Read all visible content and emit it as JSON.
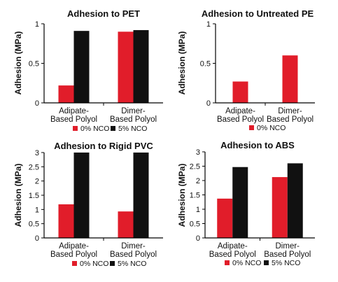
{
  "chart_data": [
    {
      "type": "bar",
      "title": "Adhesion to PET",
      "ylabel": "Adhesion (MPa)",
      "xlabel": "",
      "categories": [
        [
          "Adipate-",
          "Based Polyol"
        ],
        [
          "Dimer-",
          "Based Polyol"
        ]
      ],
      "ylim": [
        0,
        1
      ],
      "yticks": [
        0,
        0.5,
        1
      ],
      "ytick_labels": [
        "0",
        "0.5",
        "1"
      ],
      "series": [
        {
          "name": "0% NCO",
          "color": "#e11d2a",
          "values": [
            0.22,
            0.9
          ]
        },
        {
          "name": "5% NCO",
          "color": "#111111",
          "values": [
            0.91,
            0.92
          ]
        }
      ],
      "legend": "bottom",
      "grid": false
    },
    {
      "type": "bar",
      "title": "Adhesion to Untreated PE",
      "ylabel": "Adhesion (MPa)",
      "xlabel": "",
      "categories": [
        [
          "Adipate-",
          "Based Polyol"
        ],
        [
          "Dimer-",
          "Based Polyol"
        ]
      ],
      "ylim": [
        0,
        1
      ],
      "yticks": [
        0,
        0.5,
        1
      ],
      "ytick_labels": [
        "0",
        "0.5",
        "1"
      ],
      "series": [
        {
          "name": "0% NCO",
          "color": "#e11d2a",
          "values": [
            0.27,
            0.6
          ]
        }
      ],
      "legend": "bottom",
      "grid": false
    },
    {
      "type": "bar",
      "title": "Adhesion to Rigid PVC",
      "ylabel": "Adhesion (MPa)",
      "xlabel": "",
      "categories": [
        [
          "Adipate-",
          "Based Polyol"
        ],
        [
          "Dimer-",
          "Based Polyol"
        ]
      ],
      "ylim": [
        0,
        3
      ],
      "yticks": [
        0,
        0.5,
        1,
        1.5,
        2,
        2.5,
        3
      ],
      "ytick_labels": [
        "0",
        "0.5",
        "1",
        "1.5",
        "2",
        "2.5",
        "3"
      ],
      "series": [
        {
          "name": "0% NCO",
          "color": "#e11d2a",
          "values": [
            1.18,
            0.93
          ]
        },
        {
          "name": "5% NCO",
          "color": "#111111",
          "values": [
            3.0,
            3.0
          ]
        }
      ],
      "legend": "bottom",
      "grid": false
    },
    {
      "type": "bar",
      "title": "Adhesion to ABS",
      "ylabel": "Adhesion (MPa)",
      "xlabel": "",
      "categories": [
        [
          "Adipate-",
          "Based Polyol"
        ],
        [
          "Dimer-",
          "Based Polyol"
        ]
      ],
      "ylim": [
        0,
        3
      ],
      "yticks": [
        0,
        0.5,
        1,
        1.5,
        2,
        2.5,
        3
      ],
      "ytick_labels": [
        "0",
        "0.5",
        "1",
        "1.5",
        "2",
        "2.5",
        "3"
      ],
      "series": [
        {
          "name": "0% NCO",
          "color": "#e11d2a",
          "values": [
            1.37,
            2.12
          ]
        },
        {
          "name": "5% NCO",
          "color": "#111111",
          "values": [
            2.47,
            2.6
          ]
        }
      ],
      "legend": "bottom",
      "grid": false
    }
  ]
}
